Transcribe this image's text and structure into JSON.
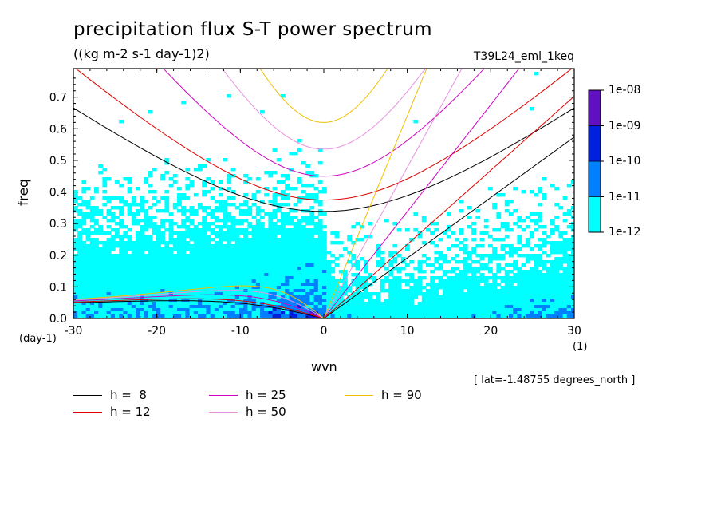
{
  "title": "precipitation flux S-T power spectrum",
  "units": "((kg m-2 s-1 day-1)2)",
  "run_name": "T39L24_eml_1keq",
  "location_note": "[ lat=-1.48755 degrees_north ]",
  "chart_data": {
    "type": "heatmap",
    "xlabel": "wvn",
    "ylabel": "freq",
    "x_unit": "(1)",
    "y_unit": "(day-1)",
    "xlim": [
      -30,
      30
    ],
    "ylim": [
      0,
      0.79
    ],
    "x_ticks": [
      "-30",
      "-20",
      "-10",
      "0",
      "10",
      "20",
      "30"
    ],
    "y_ticks": [
      "0.0",
      "0.1",
      "0.2",
      "0.3",
      "0.4",
      "0.5",
      "0.6",
      "0.7"
    ],
    "colorbar": {
      "levels": [
        "1e-12",
        "1e-11",
        "1e-10",
        "1e-09",
        "1e-08"
      ],
      "colors": [
        "#00ffff",
        "#0080ff",
        "#0020e0",
        "#6010c0"
      ]
    },
    "dispersion_curves": [
      {
        "label": "h =  8",
        "h": 8,
        "color": "#000000"
      },
      {
        "label": "h = 12",
        "h": 12,
        "color": "#e00000"
      },
      {
        "label": "h = 25",
        "h": 25,
        "color": "#d000c0"
      },
      {
        "label": "h = 50",
        "h": 50,
        "color": "#e890e0"
      },
      {
        "label": "h = 90",
        "h": 90,
        "color": "#f0c000"
      }
    ]
  }
}
